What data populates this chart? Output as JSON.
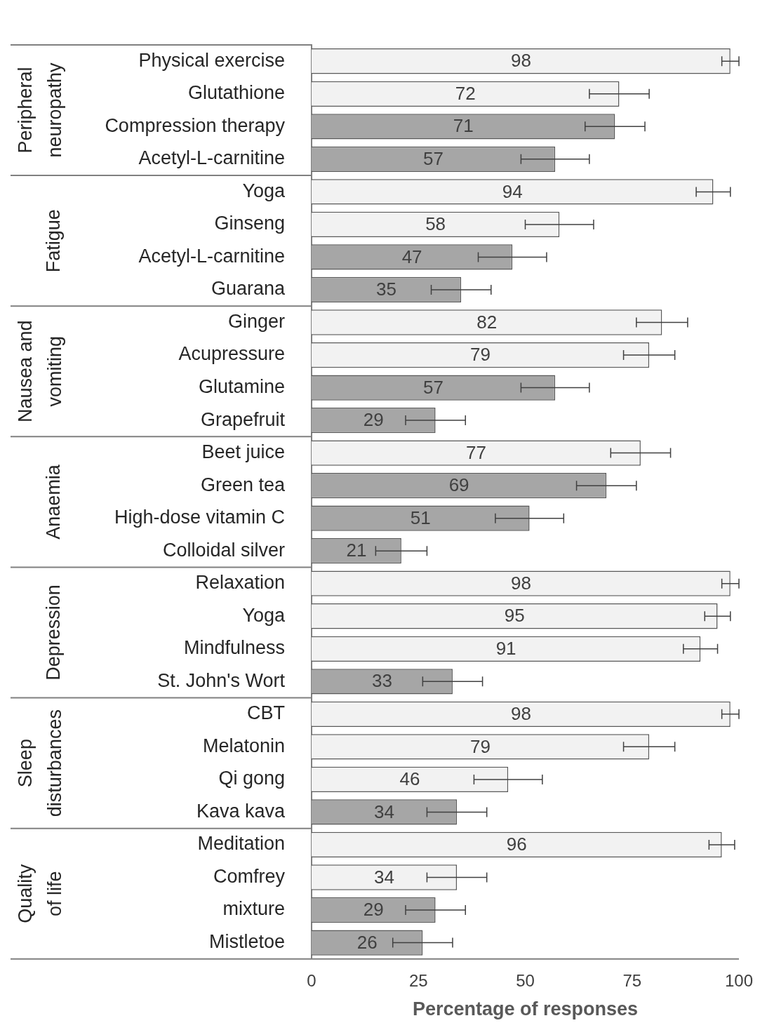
{
  "chart_data": {
    "type": "bar",
    "orientation": "horizontal",
    "xlabel": "Percentage of responses",
    "categories": [
      "Physical exercise",
      "Glutathione",
      "Compression therapy",
      "Acetyl-L-carnitine",
      "Yoga",
      "Ginseng",
      "Acetyl-L-carnitine",
      "Guarana",
      "Ginger",
      "Acupressure",
      "Glutamine",
      "Grapefruit",
      "Beet juice",
      "Green tea",
      "High-dose vitamin C",
      "Colloidal silver",
      "Relaxation",
      "Yoga",
      "Mindfulness",
      "St. John's Wort",
      "CBT",
      "Melatonin",
      "Qi gong",
      "Kava kava",
      "Meditation",
      "Comfrey",
      "mixture",
      "Mistletoe"
    ],
    "values": [
      98,
      72,
      71,
      57,
      94,
      58,
      47,
      35,
      82,
      79,
      57,
      29,
      77,
      69,
      51,
      21,
      98,
      95,
      91,
      33,
      98,
      79,
      46,
      34,
      96,
      34,
      29,
      26
    ],
    "errors": [
      2,
      7,
      7,
      8,
      4,
      8,
      8,
      7,
      6,
      6,
      8,
      7,
      7,
      7,
      8,
      6,
      2,
      3,
      4,
      7,
      2,
      6,
      8,
      7,
      3,
      7,
      7,
      7
    ],
    "colors": [
      "#f2f2f2",
      "#f2f2f2",
      "#a6a6a6",
      "#a6a6a6",
      "#f2f2f2",
      "#f2f2f2",
      "#a6a6a6",
      "#a6a6a6",
      "#f2f2f2",
      "#f2f2f2",
      "#a6a6a6",
      "#a6a6a6",
      "#f2f2f2",
      "#a6a6a6",
      "#a6a6a6",
      "#a6a6a6",
      "#f2f2f2",
      "#f2f2f2",
      "#f2f2f2",
      "#a6a6a6",
      "#f2f2f2",
      "#f2f2f2",
      "#f2f2f2",
      "#a6a6a6",
      "#f2f2f2",
      "#f2f2f2",
      "#a6a6a6",
      "#a6a6a6"
    ],
    "annotations": [
      "Peripheral neuropathy",
      "Fatigue",
      "Nausea and vomiting",
      "Anaemia",
      "Depression",
      "Sleep disturbances",
      "Quality of life"
    ],
    "xlim": [
      0,
      100
    ],
    "xticks": [
      0,
      25,
      50,
      75,
      100
    ],
    "data_labels": true,
    "grid": false,
    "legend": false
  }
}
